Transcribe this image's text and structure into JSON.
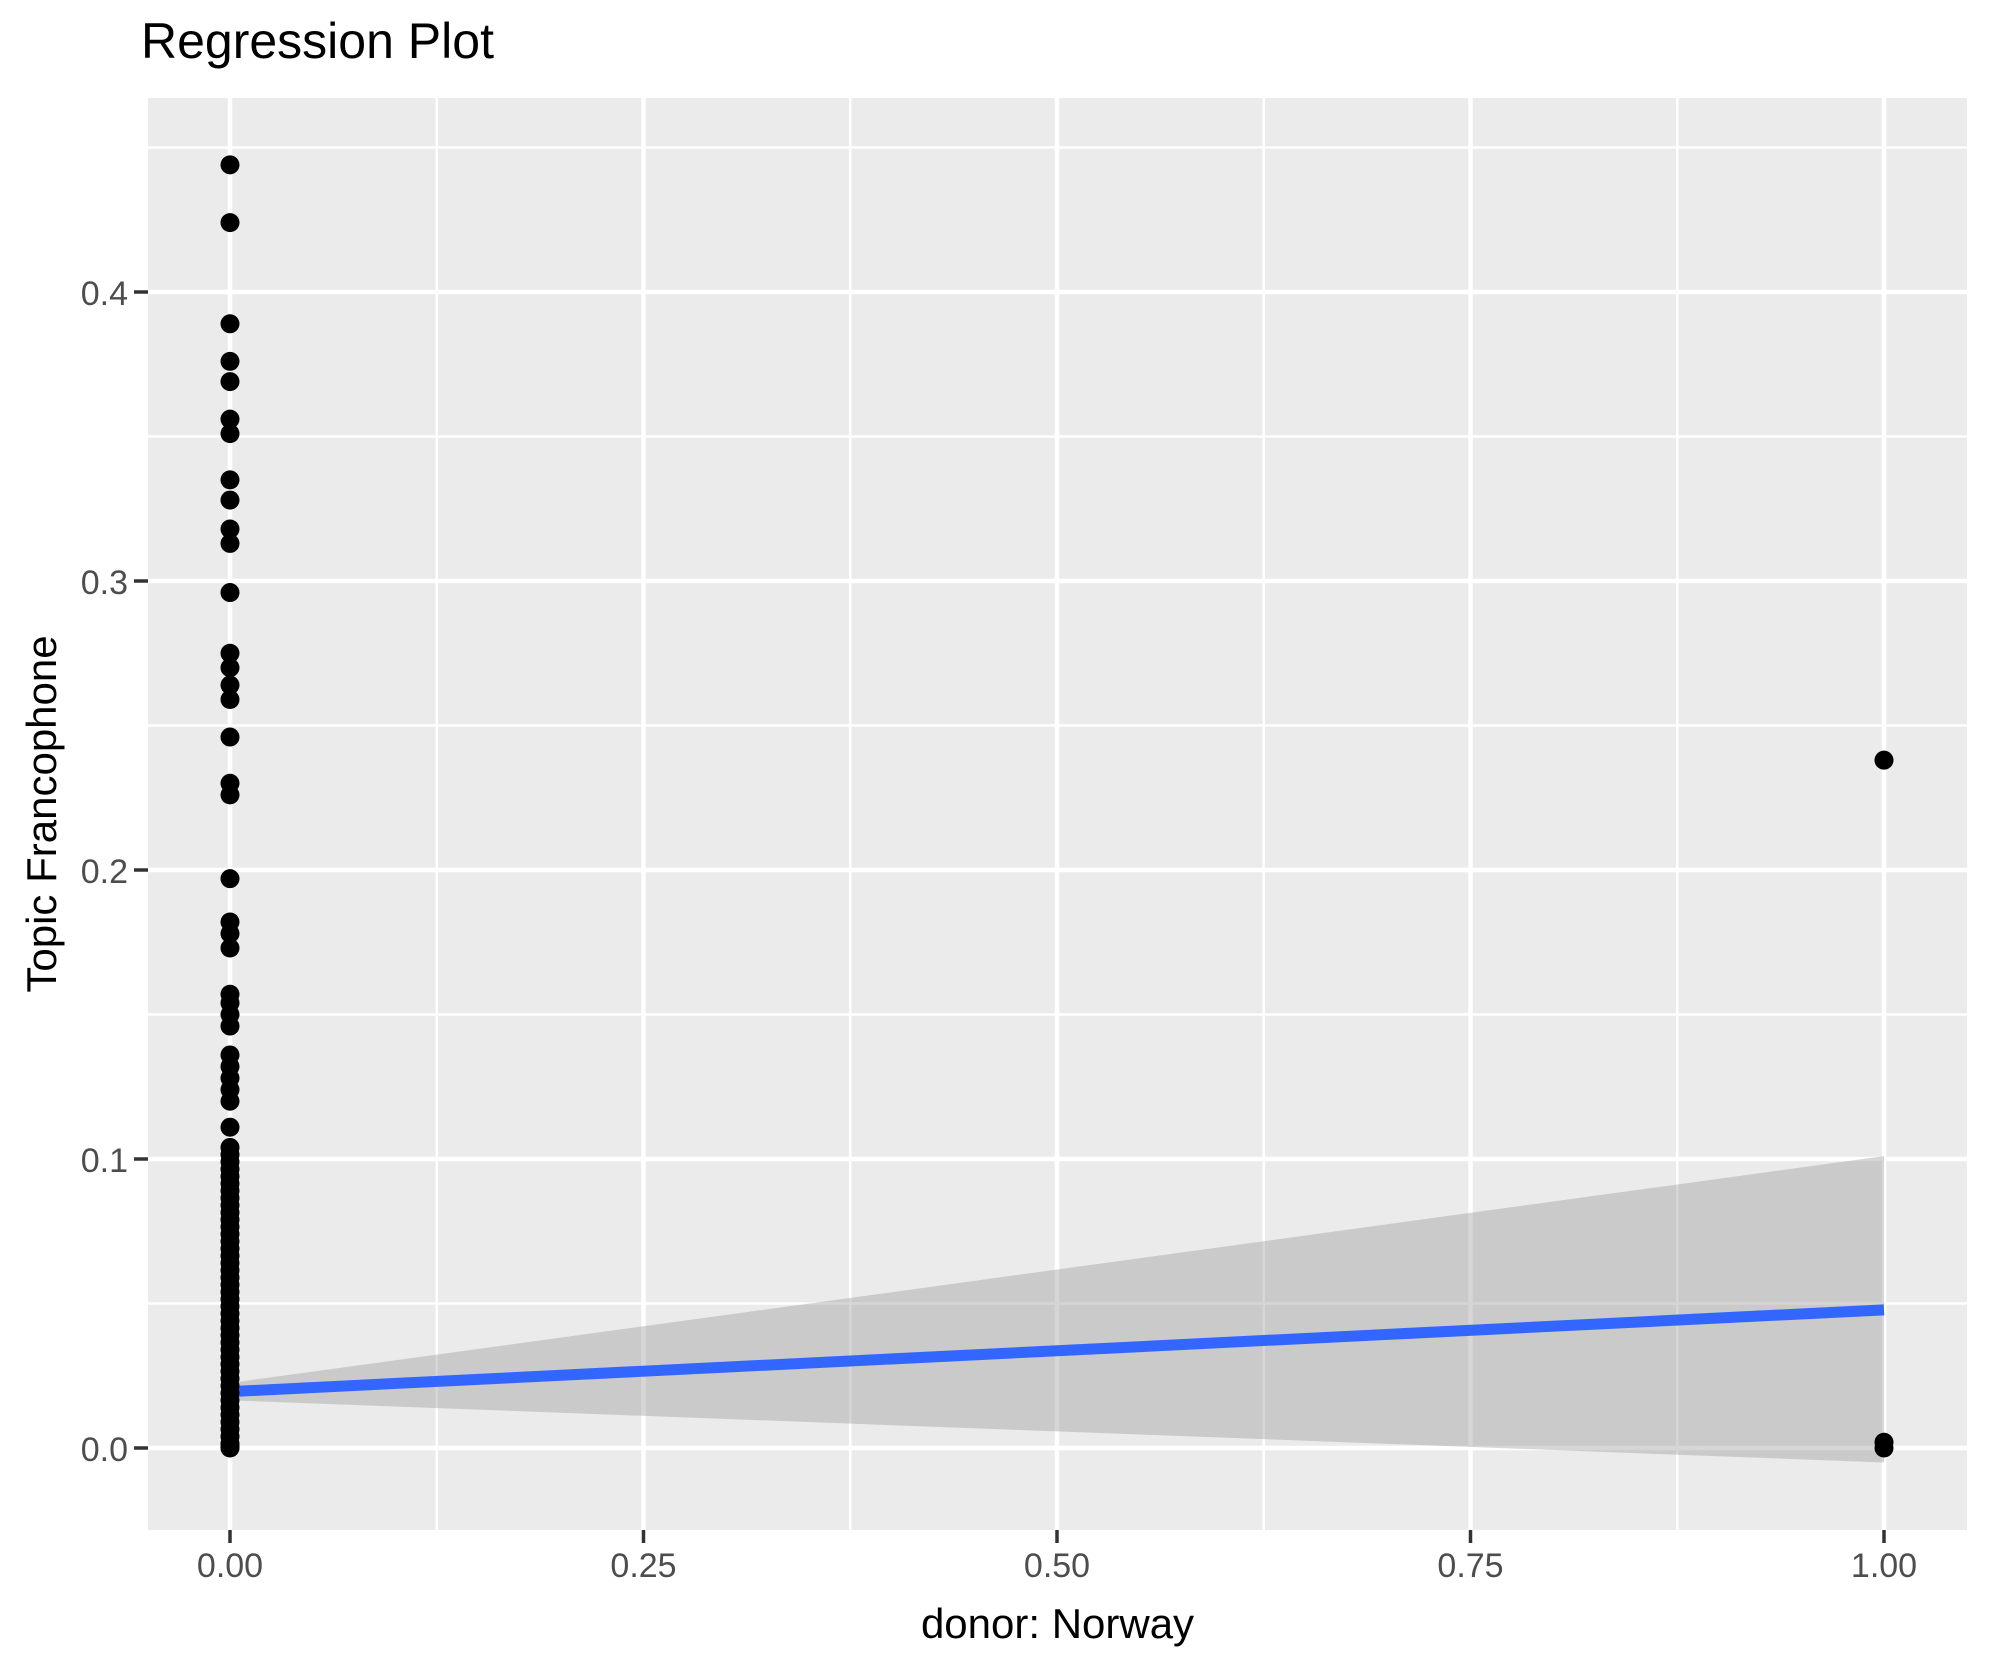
{
  "title": "Regression Plot",
  "chart_data": {
    "type": "scatter",
    "title": "Regression Plot",
    "xlabel": "donor: Norway",
    "ylabel": "Topic Francophone",
    "legend_position": "none",
    "grid": true,
    "xlim": [
      -0.0496,
      1.0502
    ],
    "ylim": [
      -0.0284,
      0.4672
    ],
    "x_ticks": [
      {
        "value": 0.0,
        "label": "0.00"
      },
      {
        "value": 0.25,
        "label": "0.25"
      },
      {
        "value": 0.5,
        "label": "0.50"
      },
      {
        "value": 0.75,
        "label": "0.75"
      },
      {
        "value": 1.0,
        "label": "1.00"
      }
    ],
    "y_ticks": [
      {
        "value": 0.0,
        "label": "0.0"
      },
      {
        "value": 0.1,
        "label": "0.1"
      },
      {
        "value": 0.2,
        "label": "0.2"
      },
      {
        "value": 0.3,
        "label": "0.3"
      },
      {
        "value": 0.4,
        "label": "0.4"
      }
    ],
    "x_minor_gridlines": [
      0.125,
      0.375,
      0.625,
      0.875
    ],
    "y_minor_gridlines": [
      0.05,
      0.15,
      0.25,
      0.35,
      0.45
    ],
    "points": [
      [
        0,
        0.444
      ],
      [
        0,
        0.424
      ],
      [
        0,
        0.389
      ],
      [
        0,
        0.376
      ],
      [
        0,
        0.369
      ],
      [
        0,
        0.356
      ],
      [
        0,
        0.351
      ],
      [
        0,
        0.335
      ],
      [
        0,
        0.328
      ],
      [
        0,
        0.318
      ],
      [
        0,
        0.313
      ],
      [
        0,
        0.296
      ],
      [
        0,
        0.275
      ],
      [
        0,
        0.27
      ],
      [
        0,
        0.264
      ],
      [
        0,
        0.259
      ],
      [
        0,
        0.246
      ],
      [
        0,
        0.23
      ],
      [
        0,
        0.226
      ],
      [
        0,
        0.197
      ],
      [
        0,
        0.182
      ],
      [
        0,
        0.178
      ],
      [
        0,
        0.173
      ],
      [
        0,
        0.157
      ],
      [
        0,
        0.154
      ],
      [
        0,
        0.15
      ],
      [
        0,
        0.146
      ],
      [
        0,
        0.136
      ],
      [
        0,
        0.132
      ],
      [
        0,
        0.128
      ],
      [
        0,
        0.124
      ],
      [
        0,
        0.12
      ],
      [
        0,
        0.111
      ],
      [
        0,
        0.104
      ],
      [
        0,
        0.1015
      ],
      [
        0,
        0.099
      ],
      [
        0,
        0.0965
      ],
      [
        0,
        0.094
      ],
      [
        0,
        0.0915
      ],
      [
        0,
        0.089
      ],
      [
        0,
        0.0865
      ],
      [
        0,
        0.084
      ],
      [
        0,
        0.0815
      ],
      [
        0,
        0.079
      ],
      [
        0,
        0.0765
      ],
      [
        0,
        0.074
      ],
      [
        0,
        0.0715
      ],
      [
        0,
        0.069
      ],
      [
        0,
        0.0665
      ],
      [
        0,
        0.064
      ],
      [
        0,
        0.0615
      ],
      [
        0,
        0.059
      ],
      [
        0,
        0.0565
      ],
      [
        0,
        0.054
      ],
      [
        0,
        0.0515
      ],
      [
        0,
        0.049
      ],
      [
        0,
        0.0465
      ],
      [
        0,
        0.044
      ],
      [
        0,
        0.0415
      ],
      [
        0,
        0.039
      ],
      [
        0,
        0.0365
      ],
      [
        0,
        0.034
      ],
      [
        0,
        0.0315
      ],
      [
        0,
        0.029
      ],
      [
        0,
        0.0265
      ],
      [
        0,
        0.024
      ],
      [
        0,
        0.0215
      ],
      [
        0,
        0.019
      ],
      [
        0,
        0.0165
      ],
      [
        0,
        0.014
      ],
      [
        0,
        0.0115
      ],
      [
        0,
        0.009
      ],
      [
        0,
        0.0065
      ],
      [
        0,
        0.004
      ],
      [
        0,
        0.0015
      ],
      [
        0,
        0.0005
      ],
      [
        0,
        0.0
      ],
      [
        1,
        0.238
      ],
      [
        1,
        0.002
      ],
      [
        1,
        0.0
      ]
    ],
    "regression_line": {
      "x": [
        0,
        1
      ],
      "y": [
        0.0195,
        0.0478
      ]
    },
    "confidence_band": {
      "x": [
        0,
        1
      ],
      "upper": [
        0.0225,
        0.101
      ],
      "lower": [
        0.0165,
        -0.005
      ]
    },
    "colors": {
      "panel_background": "#EBEBEB",
      "gridline": "#FFFFFF",
      "point": "#000000",
      "regression_line": "#3366FF",
      "confidence_band": "rgba(153,153,153,0.40)",
      "tick_label": "#4D4D4D",
      "tick_mark": "#333333",
      "axis_title": "#000000"
    }
  }
}
